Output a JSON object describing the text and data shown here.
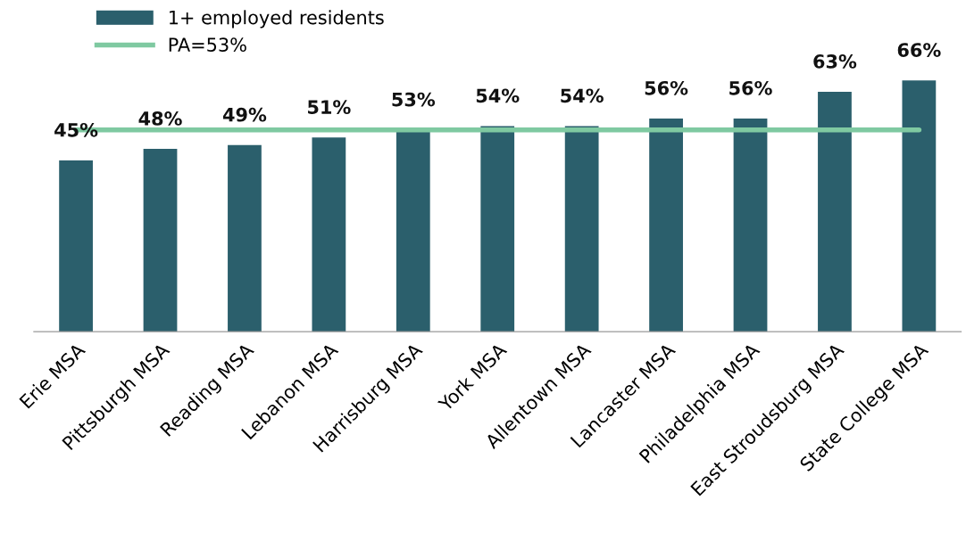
{
  "chart_data": {
    "type": "bar",
    "categories": [
      "Erie MSA",
      "Pittsburgh MSA",
      "Reading MSA",
      "Lebanon MSA",
      "Harrisburg MSA",
      "York MSA",
      "Allentown MSA",
      "Lancaster MSA",
      "Philadelphia MSA",
      "East Stroudsburg MSA",
      "State College MSA"
    ],
    "series": [
      {
        "name": "1+ employed residents",
        "color": "#2b5f6c",
        "values": [
          45,
          48,
          49,
          51,
          53,
          54,
          54,
          56,
          56,
          63,
          66
        ],
        "value_labels": [
          "45%",
          "48%",
          "49%",
          "51%",
          "53%",
          "54%",
          "54%",
          "56%",
          "56%",
          "63%",
          "66%"
        ]
      }
    ],
    "ref_lines": [
      {
        "axis": "y",
        "value": 53,
        "label": "PA=53%",
        "color": "#7fc9a1"
      }
    ],
    "tick_labels": "x",
    "legend": "top left",
    "grid": false
  }
}
